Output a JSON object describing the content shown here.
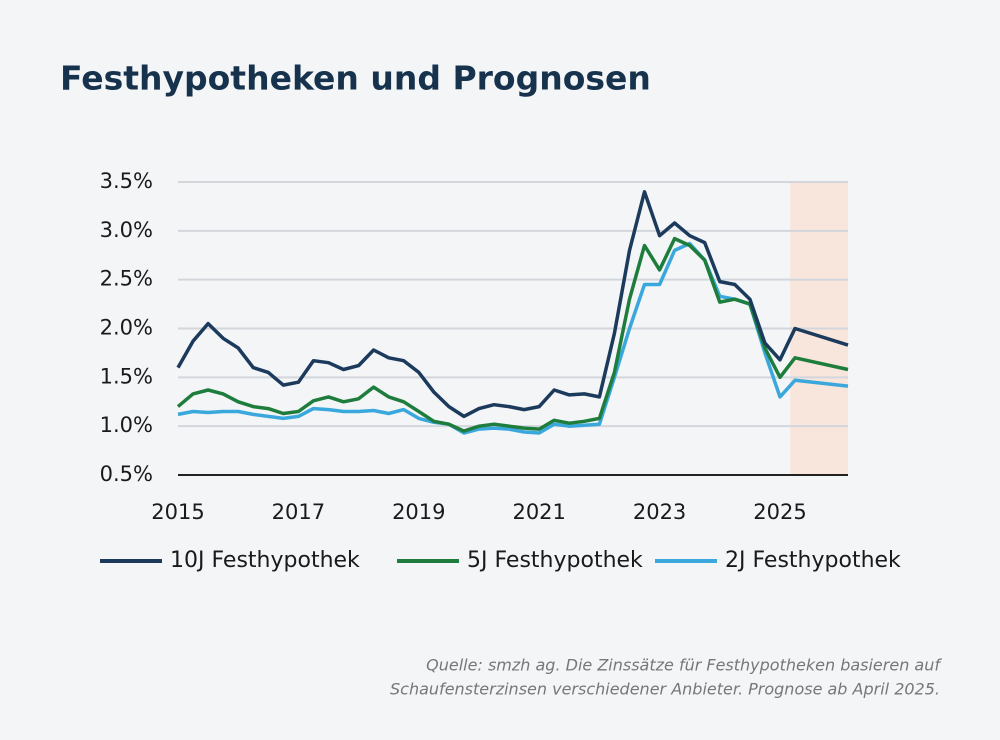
{
  "chart_data": {
    "type": "line",
    "title": "Festhypotheken und Prognosen",
    "x": [
      2015,
      2015.25,
      2015.5,
      2015.75,
      2016,
      2016.25,
      2016.5,
      2016.75,
      2017,
      2017.25,
      2017.5,
      2017.75,
      2018,
      2018.25,
      2018.5,
      2018.75,
      2019,
      2019.25,
      2019.5,
      2019.75,
      2020,
      2020.25,
      2020.5,
      2020.75,
      2021,
      2021.25,
      2021.5,
      2021.75,
      2022,
      2022.25,
      2022.5,
      2022.75,
      2023,
      2023.25,
      2023.5,
      2023.75,
      2024,
      2024.25,
      2024.5,
      2024.75,
      2025,
      2025.25,
      2026.13
    ],
    "series": [
      {
        "name": "10J Festhypothek",
        "color": "#1b3a5c",
        "values": [
          1.6,
          1.87,
          2.05,
          1.9,
          1.8,
          1.6,
          1.55,
          1.42,
          1.45,
          1.67,
          1.65,
          1.58,
          1.62,
          1.78,
          1.7,
          1.67,
          1.55,
          1.35,
          1.2,
          1.1,
          1.18,
          1.22,
          1.2,
          1.17,
          1.2,
          1.37,
          1.32,
          1.33,
          1.3,
          1.95,
          2.8,
          3.4,
          2.95,
          3.08,
          2.95,
          2.88,
          2.48,
          2.45,
          2.3,
          1.85,
          1.68,
          2.0,
          1.83
        ]
      },
      {
        "name": "5J Festhypothek",
        "color": "#1e7d3c",
        "values": [
          1.2,
          1.33,
          1.37,
          1.33,
          1.25,
          1.2,
          1.18,
          1.13,
          1.15,
          1.26,
          1.3,
          1.25,
          1.28,
          1.4,
          1.3,
          1.25,
          1.15,
          1.05,
          1.02,
          0.95,
          1.0,
          1.02,
          1.0,
          0.98,
          0.97,
          1.06,
          1.03,
          1.05,
          1.08,
          1.55,
          2.3,
          2.85,
          2.6,
          2.92,
          2.85,
          2.7,
          2.27,
          2.3,
          2.25,
          1.8,
          1.5,
          1.7,
          1.58
        ]
      },
      {
        "name": "2J Festhypothek",
        "color": "#3aa8dc",
        "values": [
          1.12,
          1.15,
          1.14,
          1.15,
          1.15,
          1.12,
          1.1,
          1.08,
          1.1,
          1.18,
          1.17,
          1.15,
          1.15,
          1.16,
          1.13,
          1.17,
          1.08,
          1.04,
          1.02,
          0.93,
          0.97,
          0.98,
          0.97,
          0.94,
          0.93,
          1.02,
          1.0,
          1.01,
          1.02,
          1.5,
          2.0,
          2.45,
          2.45,
          2.8,
          2.87,
          2.7,
          2.33,
          2.3,
          2.25,
          1.75,
          1.3,
          1.47,
          1.41
        ]
      }
    ],
    "xlim": [
      2015,
      2026.13
    ],
    "xticks": [
      2015,
      2017,
      2019,
      2021,
      2023,
      2025
    ],
    "ylim": [
      0.5,
      3.5
    ],
    "yticks": [
      {
        "value": 0.5,
        "label": "0.5%"
      },
      {
        "value": 1.0,
        "label": "1.0%"
      },
      {
        "value": 1.5,
        "label": "1.5%"
      },
      {
        "value": 2.0,
        "label": "2.0%"
      },
      {
        "value": 2.5,
        "label": "2.5%"
      },
      {
        "value": 3.0,
        "label": "3.0%"
      },
      {
        "value": 3.5,
        "label": "3.5%"
      }
    ],
    "grid": true,
    "legend": "bottom",
    "forecast_band": [
      2025.17,
      2026.13
    ],
    "forecast_color": "#f8e6dd",
    "source": [
      "Quelle: smzh ag. Die Zinssätze für Festhypotheken basieren auf",
      "Schaufensterzinsen verschiedener Anbieter. Prognose ab April 2025."
    ]
  }
}
